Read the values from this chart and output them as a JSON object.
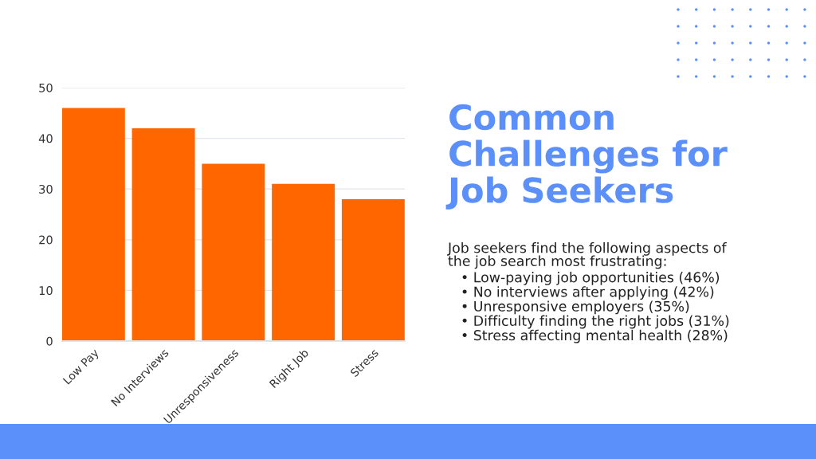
{
  "chart_data": {
    "type": "bar",
    "title": "Common\nChallenges for\nJob Seekers",
    "subtitle": "Job seekers find the following aspects of\nthe job search most frustrating:",
    "annotations": [
      "• Low-paying job opportunities (46%)",
      "• No interviews after applying (42%)",
      "• Unresponsive employers (35%)",
      "• Difficulty finding the right jobs (31%)",
      "• Stress affecting mental health (28%)"
    ],
    "categories": [
      "Low Pay",
      "No Interviews",
      "Unresponsiveness",
      "Right Job",
      "Stress"
    ],
    "values": [
      46,
      42,
      35,
      31,
      28
    ],
    "color": "#ff6600",
    "ylim": [
      0,
      50
    ],
    "yticks": [
      0,
      10,
      20,
      30,
      40,
      50
    ],
    "grid": "y"
  }
}
